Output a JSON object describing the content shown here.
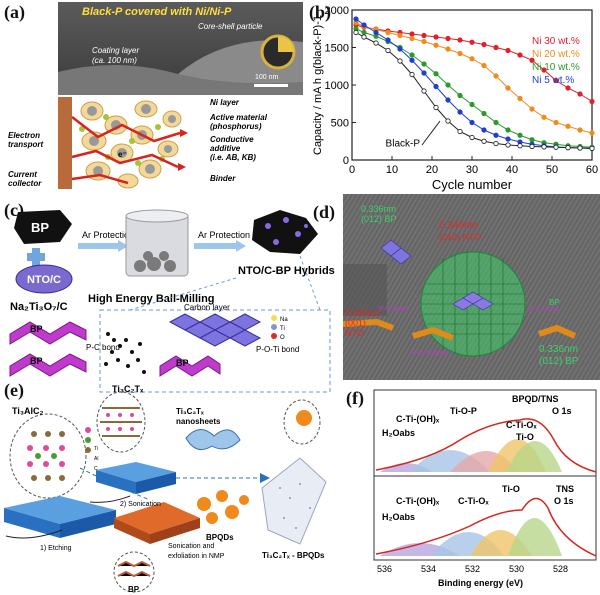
{
  "labels": {
    "a": "(a)",
    "b": "(b)",
    "c": "(c)",
    "d": "(d)",
    "e": "(e)",
    "f": "(f)"
  },
  "panel_a": {
    "title": "Black-P covered with Ni/Ni-P",
    "core_shell": "Core-shell particle",
    "coating": "Coating layer",
    "coating_sub": "(ca. 100 nm)",
    "scale": "100 nm",
    "legend": [
      "Ni layer",
      "Active material",
      "(phosphorus)",
      "Conductive",
      "additive",
      "(i.e. AB, KB)",
      "Binder"
    ],
    "electron": [
      "Electron",
      "transport"
    ],
    "current": [
      "Current",
      "collector"
    ],
    "e_minus": "e⁻"
  },
  "chart_data": {
    "type": "line",
    "xlabel": "Cycle number",
    "ylabel": "Capacity / mA h g(black-P)-1",
    "xlim": [
      0,
      60
    ],
    "ylim": [
      0,
      2000
    ],
    "xticks": [
      0,
      10,
      20,
      30,
      40,
      50,
      60
    ],
    "yticks": [
      0,
      500,
      1000,
      1500,
      2000
    ],
    "legend_placement": "top-right",
    "x": [
      1,
      3,
      6,
      9,
      12,
      15,
      18,
      21,
      24,
      27,
      30,
      33,
      36,
      39,
      42,
      45,
      48,
      51,
      54,
      57,
      60
    ],
    "series": [
      {
        "name": "Ni 30 wt.%",
        "color": "#e0202a",
        "values": [
          1800,
          1770,
          1745,
          1720,
          1700,
          1680,
          1660,
          1640,
          1620,
          1600,
          1570,
          1540,
          1500,
          1460,
          1400,
          1330,
          1200,
          1060,
          960,
          880,
          780
        ]
      },
      {
        "name": "Ni 20 wt.%",
        "color": "#f08a1c",
        "values": [
          1830,
          1780,
          1740,
          1700,
          1660,
          1620,
          1580,
          1530,
          1480,
          1420,
          1350,
          1260,
          1120,
          960,
          820,
          680,
          570,
          500,
          450,
          400,
          360
        ]
      },
      {
        "name": "Ni 10 wt.%",
        "color": "#2a9a2a",
        "values": [
          1750,
          1700,
          1650,
          1580,
          1500,
          1400,
          1280,
          1150,
          1000,
          860,
          740,
          620,
          500,
          400,
          330,
          270,
          230,
          210,
          190,
          180,
          170
        ]
      },
      {
        "name": "Ni 5 wt.%",
        "color": "#1f3fd0",
        "values": [
          1880,
          1800,
          1700,
          1600,
          1480,
          1330,
          1160,
          980,
          800,
          640,
          500,
          400,
          330,
          280,
          240,
          210,
          190,
          175,
          165,
          160,
          155
        ]
      },
      {
        "name": "Black-P",
        "color": "#222222",
        "values": [
          1700,
          1640,
          1560,
          1460,
          1320,
          1140,
          920,
          700,
          520,
          380,
          300,
          250,
          220,
          200,
          190,
          180,
          175,
          170,
          165,
          160,
          155
        ]
      }
    ],
    "annotation": "Black-P"
  },
  "panel_c": {
    "bp": "BP",
    "nto": "NTO/C",
    "formula": "Na₂Ti₃O₇/C",
    "ar1": "Ar Protection",
    "ar2": "Ar Protection",
    "mill": "High  Energy Ball-Milling",
    "hybrid": "NTO/C-BP Hybrids",
    "carbon": "Carbon layer",
    "pc": "P-C bond",
    "poti": "P-O-Ti bond",
    "bp_small": [
      "BP",
      "BP",
      "BP"
    ],
    "elems": [
      "Na",
      "Ti",
      "O"
    ]
  },
  "panel_d": {
    "d1": "0.336nm",
    "d1b": "(012) BP",
    "d2": "0.346nm",
    "d2b": "(012) NTO",
    "d3": "0.340nm",
    "d3b": "(001)",
    "d3c": "NTO",
    "pc": "P-C bond",
    "pc2": "P-C bond",
    "poti": "P-O-Ti bond",
    "bp": "BP",
    "d4": "0.336nm",
    "d4b": "(012)  BP"
  },
  "panel_e": {
    "ti3alc2": "Ti₃AlC₂",
    "ti3c2tx": "Ti₃C₂Tₓ",
    "nanosheets1": "Ti₃C₂Tₓ",
    "nanosheets2": "nanosheets",
    "etching": "1) Etching",
    "sonication": "2) Sonication",
    "sonic2": [
      "Sonication and",
      "exfoliation in NMP"
    ],
    "bpqds": "BPQDs",
    "bp": "BP",
    "product": "Ti₃C₂Tₓ - BPQDs",
    "elems": [
      "Ti",
      "Al",
      "C"
    ]
  },
  "panel_f": {
    "top_title": "BPQD/TNS",
    "top_sub": "O 1s",
    "bot_title": "TNS",
    "bot_sub": "O 1s",
    "top_peaks": [
      "C-Ti-(OH)ₓ",
      "Ti-O-P",
      "C-Ti-Oₓ",
      "H₂Oabs",
      "Ti-O"
    ],
    "bot_peaks": [
      "Ti-O",
      "C-Ti-(OH)ₓ",
      "C-Ti-Oₓ",
      "H₂Oabs"
    ],
    "xlabel": "Binding energy (eV)",
    "xticks": [
      "536",
      "534",
      "532",
      "530",
      "528"
    ]
  }
}
